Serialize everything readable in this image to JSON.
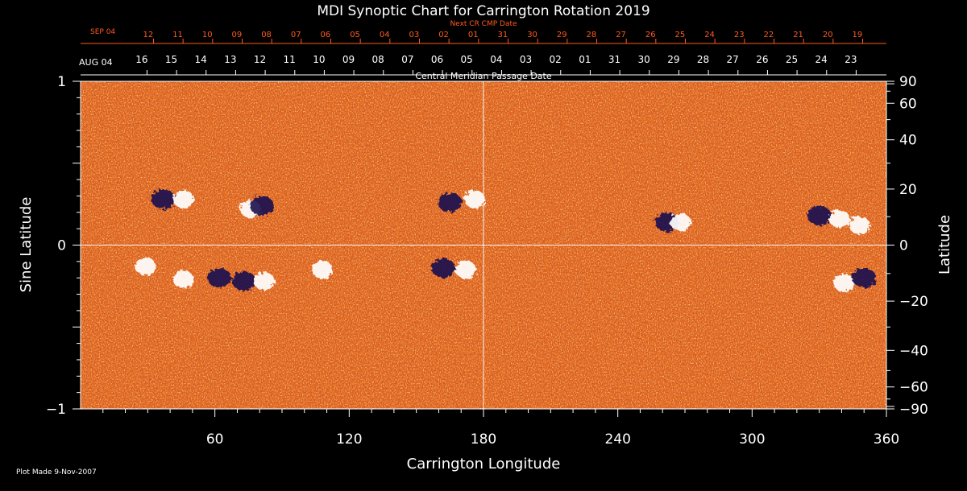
{
  "chart_data": {
    "type": "heatmap",
    "title": "MDI Synoptic Chart for Carrington Rotation 2019",
    "xlabel": "Carrington Longitude",
    "ylabel_left": "Sine Latitude",
    "ylabel_right": "Latitude",
    "xlim": [
      0,
      360
    ],
    "ylim": [
      -1,
      1
    ],
    "x_ticks": [
      60,
      120,
      180,
      240,
      300,
      360
    ],
    "y_ticks_left": [
      {
        "value": 1,
        "label": "1"
      },
      {
        "value": 0,
        "label": "0"
      },
      {
        "value": -1,
        "label": "−1"
      }
    ],
    "y_ticks_right": [
      {
        "lat": 90,
        "label": "90"
      },
      {
        "lat": 60,
        "label": "60"
      },
      {
        "lat": 40,
        "label": "40"
      },
      {
        "lat": 20,
        "label": "20"
      },
      {
        "lat": 0,
        "label": "0"
      },
      {
        "lat": -20,
        "label": "−20"
      },
      {
        "lat": -40,
        "label": "−40"
      },
      {
        "lat": -60,
        "label": "−60"
      },
      {
        "lat": -90,
        "label": "−90"
      }
    ],
    "top_axis_next_rotation": {
      "label": "Next CR CMP Date",
      "month_label": "SEP 04",
      "days": [
        "12",
        "11",
        "10",
        "09",
        "08",
        "07",
        "06",
        "05",
        "04",
        "03",
        "02",
        "01",
        "31",
        "30",
        "29",
        "28",
        "27",
        "26",
        "25",
        "24",
        "23",
        "22",
        "21",
        "20",
        "19"
      ],
      "day0_longitude": 30.2,
      "longitude_step": 13.2,
      "color": "#ff5a1e"
    },
    "top_axis_central_meridian": {
      "label": "Central Meridian Passage Date",
      "month_label": "AUG 04",
      "days": [
        "16",
        "15",
        "14",
        "13",
        "12",
        "11",
        "10",
        "09",
        "08",
        "07",
        "06",
        "05",
        "04",
        "03",
        "02",
        "01",
        "31",
        "30",
        "29",
        "28",
        "27",
        "26",
        "25",
        "24",
        "23"
      ],
      "day0_longitude": 27.3,
      "longitude_step": 13.2
    },
    "reference_lines": {
      "x": 180,
      "y": 0
    },
    "colors": {
      "background_field": "#e0621c",
      "positive_polarity": "#ffffff",
      "negative_polarity": "#1a1050",
      "frame": "#ffffff",
      "next_rotation_axis": "#ff5a1e"
    },
    "active_regions": [
      {
        "lon": 37,
        "sinlat": 0.28,
        "polarity": "negative"
      },
      {
        "lon": 46,
        "sinlat": 0.28,
        "polarity": "positive"
      },
      {
        "lon": 76,
        "sinlat": 0.22,
        "polarity": "positive"
      },
      {
        "lon": 81,
        "sinlat": 0.24,
        "polarity": "negative"
      },
      {
        "lon": 165,
        "sinlat": 0.26,
        "polarity": "negative"
      },
      {
        "lon": 176,
        "sinlat": 0.28,
        "polarity": "positive"
      },
      {
        "lon": 262,
        "sinlat": 0.14,
        "polarity": "negative"
      },
      {
        "lon": 268,
        "sinlat": 0.14,
        "polarity": "positive"
      },
      {
        "lon": 330,
        "sinlat": 0.18,
        "polarity": "negative"
      },
      {
        "lon": 339,
        "sinlat": 0.16,
        "polarity": "positive"
      },
      {
        "lon": 348,
        "sinlat": 0.12,
        "polarity": "positive"
      },
      {
        "lon": 29,
        "sinlat": -0.13,
        "polarity": "positive"
      },
      {
        "lon": 46,
        "sinlat": -0.21,
        "polarity": "positive"
      },
      {
        "lon": 62,
        "sinlat": -0.2,
        "polarity": "negative"
      },
      {
        "lon": 73,
        "sinlat": -0.22,
        "polarity": "negative"
      },
      {
        "lon": 82,
        "sinlat": -0.22,
        "polarity": "positive"
      },
      {
        "lon": 108,
        "sinlat": -0.15,
        "polarity": "positive"
      },
      {
        "lon": 162,
        "sinlat": -0.14,
        "polarity": "negative"
      },
      {
        "lon": 172,
        "sinlat": -0.15,
        "polarity": "positive"
      },
      {
        "lon": 341,
        "sinlat": -0.23,
        "polarity": "positive"
      },
      {
        "lon": 350,
        "sinlat": -0.2,
        "polarity": "negative"
      }
    ]
  },
  "footer": {
    "plot_made": "Plot Made  9-Nov-2007"
  }
}
